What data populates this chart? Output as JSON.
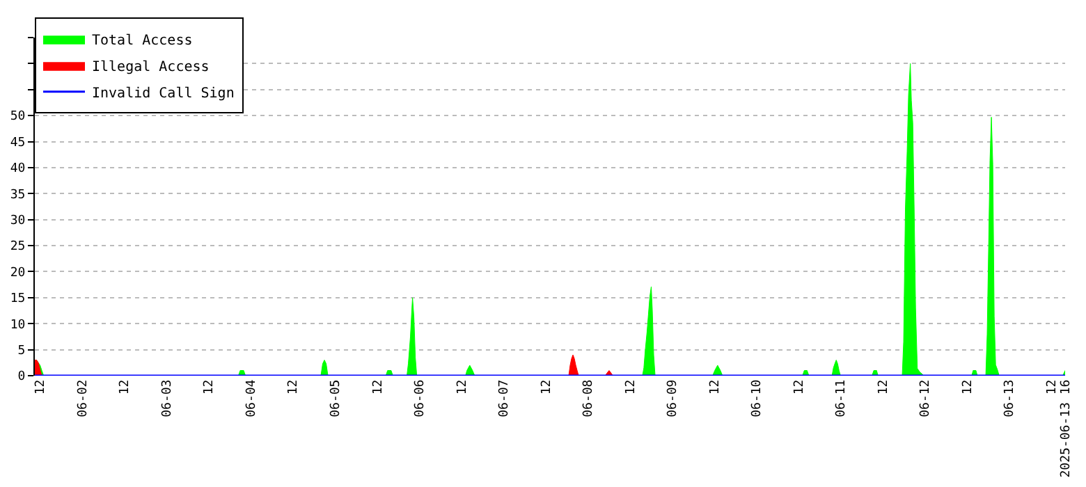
{
  "chart_data": {
    "type": "area",
    "legend": "top left",
    "grid": "y",
    "xlim": [
      "2025-06-01T10:30",
      "2025-06-13T16:00"
    ],
    "xticks": [
      {
        "value": "2025-06-01T12:00",
        "label": "12"
      },
      {
        "value": "2025-06-02",
        "label": "06-02"
      },
      {
        "value": "2025-06-02T12:00",
        "label": "12"
      },
      {
        "value": "2025-06-03",
        "label": "06-03"
      },
      {
        "value": "2025-06-03T12:00",
        "label": "12"
      },
      {
        "value": "2025-06-04",
        "label": "06-04"
      },
      {
        "value": "2025-06-04T12:00",
        "label": "12"
      },
      {
        "value": "2025-06-05",
        "label": "06-05"
      },
      {
        "value": "2025-06-05T12:00",
        "label": "12"
      },
      {
        "value": "2025-06-06",
        "label": "06-06"
      },
      {
        "value": "2025-06-06T12:00",
        "label": "12"
      },
      {
        "value": "2025-06-07",
        "label": "06-07"
      },
      {
        "value": "2025-06-07T12:00",
        "label": "12"
      },
      {
        "value": "2025-06-08",
        "label": "06-08"
      },
      {
        "value": "2025-06-08T12:00",
        "label": "12"
      },
      {
        "value": "2025-06-09",
        "label": "06-09"
      },
      {
        "value": "2025-06-09T12:00",
        "label": "12"
      },
      {
        "value": "2025-06-10",
        "label": "06-10"
      },
      {
        "value": "2025-06-10T12:00",
        "label": "12"
      },
      {
        "value": "2025-06-11",
        "label": "06-11"
      },
      {
        "value": "2025-06-11T12:00",
        "label": "12"
      },
      {
        "value": "2025-06-12",
        "label": "06-12"
      },
      {
        "value": "2025-06-12T12:00",
        "label": "12"
      },
      {
        "value": "2025-06-13",
        "label": "06-13"
      },
      {
        "value": "2025-06-13T12:00",
        "label": "12"
      },
      {
        "value": "2025-06-13T16:00",
        "label": "2025-06-13 16"
      }
    ],
    "ylim": [
      0,
      65
    ],
    "yticks": [
      0,
      5,
      10,
      15,
      20,
      25,
      30,
      35,
      40,
      45,
      50,
      {
        "value": 55,
        "label": null
      },
      {
        "value": 60,
        "label": null
      },
      {
        "value": 65,
        "label": null
      }
    ],
    "series": [
      {
        "name": "Total Access",
        "color": "#00ff00",
        "x": [
          "2025-06-01T10:30",
          "2025-06-01T11:00",
          "2025-06-01T11:30",
          "2025-06-01T12:00",
          "2025-06-01T12:30",
          "2025-06-01T13:00",
          "2025-06-03T20:30",
          "2025-06-03T21:00",
          "2025-06-03T22:00",
          "2025-06-03T22:30",
          "2025-06-04T20:00",
          "2025-06-04T20:30",
          "2025-06-04T21:00",
          "2025-06-04T21:30",
          "2025-06-04T22:00",
          "2025-06-05T14:30",
          "2025-06-05T15:00",
          "2025-06-05T16:00",
          "2025-06-05T16:30",
          "2025-06-05T20:30",
          "2025-06-05T20:54",
          "2025-06-05T21:30",
          "2025-06-05T21:54",
          "2025-06-05T22:06",
          "2025-06-05T22:30",
          "2025-06-05T22:54",
          "2025-06-05T23:18",
          "2025-06-06T13:12",
          "2025-06-06T13:36",
          "2025-06-06T14:24",
          "2025-06-06T15:12",
          "2025-06-06T15:48",
          "2025-06-08T15:36",
          "2025-06-08T16:00",
          "2025-06-08T16:24",
          "2025-06-08T16:54",
          "2025-06-08T17:18",
          "2025-06-08T17:42",
          "2025-06-08T18:06",
          "2025-06-08T18:24",
          "2025-06-08T18:48",
          "2025-06-08T19:12",
          "2025-06-09T11:36",
          "2025-06-09T12:12",
          "2025-06-09T13:00",
          "2025-06-09T13:48",
          "2025-06-09T14:24",
          "2025-06-10T13:12",
          "2025-06-10T13:42",
          "2025-06-10T14:30",
          "2025-06-10T15:00",
          "2025-06-10T21:36",
          "2025-06-10T22:00",
          "2025-06-10T22:24",
          "2025-06-10T22:48",
          "2025-06-10T23:12",
          "2025-06-10T23:36",
          "2025-06-11T00:00",
          "2025-06-11T09:00",
          "2025-06-11T09:30",
          "2025-06-11T10:18",
          "2025-06-11T10:42",
          "2025-06-11T17:36",
          "2025-06-11T18:00",
          "2025-06-11T18:30",
          "2025-06-11T19:00",
          "2025-06-11T19:24",
          "2025-06-11T19:54",
          "2025-06-11T20:12",
          "2025-06-11T20:36",
          "2025-06-11T21:00",
          "2025-06-11T21:24",
          "2025-06-11T21:54",
          "2025-06-11T22:36",
          "2025-06-11T23:18",
          "2025-06-11T23:42",
          "2025-06-12T13:24",
          "2025-06-12T13:48",
          "2025-06-12T14:36",
          "2025-06-12T15:00",
          "2025-06-12T17:24",
          "2025-06-12T17:48",
          "2025-06-12T18:12",
          "2025-06-12T18:36",
          "2025-06-12T19:00",
          "2025-06-12T19:24",
          "2025-06-12T19:48",
          "2025-06-12T20:12",
          "2025-06-12T20:48",
          "2025-06-12T21:12",
          "2025-06-13T15:20",
          "2025-06-13T15:40",
          "2025-06-13T16:00"
        ],
        "values": [
          3,
          3,
          2.5,
          2,
          1,
          0,
          0,
          1,
          1,
          0,
          0,
          2.3,
          3,
          2.3,
          0,
          0,
          1,
          1,
          0,
          0,
          2.3,
          7.5,
          12.7,
          15,
          11.2,
          3.5,
          0,
          0,
          1,
          2,
          1,
          0,
          0,
          1.5,
          4.9,
          8.4,
          11.8,
          15.2,
          17.1,
          12.7,
          4,
          0,
          0,
          1,
          2,
          1,
          0,
          0,
          1,
          1,
          0,
          0,
          1.5,
          2.3,
          3,
          2.3,
          1,
          0,
          0,
          1,
          1,
          0,
          0,
          6.5,
          32.1,
          43.1,
          54,
          60,
          52.9,
          48.6,
          32.1,
          13.1,
          1.4,
          0.7,
          0.3,
          0,
          0,
          1,
          1,
          0,
          0,
          8,
          24.5,
          41.4,
          49.7,
          40.6,
          11.4,
          2.1,
          1,
          0,
          0,
          0.5,
          1
        ]
      },
      {
        "name": "Illegal Access",
        "color": "#ff0000",
        "x": [
          "2025-06-01T10:30",
          "2025-06-01T11:00",
          "2025-06-01T11:30",
          "2025-06-01T12:00",
          "2025-06-01T12:30",
          "2025-06-07T18:36",
          "2025-06-07T19:00",
          "2025-06-07T19:24",
          "2025-06-07T19:48",
          "2025-06-07T20:12",
          "2025-06-07T20:36",
          "2025-06-07T21:00",
          "2025-06-07T21:24",
          "2025-06-08T05:00",
          "2025-06-08T05:30",
          "2025-06-08T06:06",
          "2025-06-08T06:40",
          "2025-06-08T07:10"
        ],
        "values": [
          3,
          3,
          2.5,
          1.2,
          0,
          0,
          2,
          3.3,
          4,
          3.3,
          2,
          1,
          0,
          0,
          0.5,
          1,
          0.5,
          0
        ]
      },
      {
        "name": "Invalid Call Sign",
        "color": "#0000ff",
        "type": "line",
        "x": [
          "2025-06-01T10:30",
          "2025-06-13T16:00"
        ],
        "values": [
          0,
          0
        ]
      }
    ]
  }
}
